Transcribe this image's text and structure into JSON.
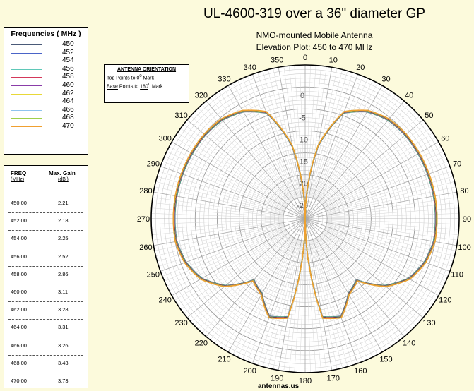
{
  "title": "UL-4600-319 over a 36\" diameter GP",
  "subtitle": "NMO-mounted Mobile Antenna",
  "subtitle2": "Elevation Plot:  450 to 470 MHz",
  "watermark": "antennas.us",
  "legend": {
    "header": "Frequencies ( MHz )",
    "items": [
      {
        "label": "450",
        "color": "#4a5a78"
      },
      {
        "label": "452",
        "color": "#4a64c8"
      },
      {
        "label": "454",
        "color": "#2fa836"
      },
      {
        "label": "456",
        "color": "#5fc8b8"
      },
      {
        "label": "458",
        "color": "#d4385a"
      },
      {
        "label": "460",
        "color": "#8a3ca8"
      },
      {
        "label": "462",
        "color": "#e8d838"
      },
      {
        "label": "464",
        "color": "#000000"
      },
      {
        "label": "466",
        "color": "#8ec4ee"
      },
      {
        "label": "468",
        "color": "#9ed04a"
      },
      {
        "label": "470",
        "color": "#f0a030"
      }
    ]
  },
  "orientation": {
    "title": "ANTENNA ORIENTATION",
    "line1_a": "Top",
    "line1_b": " Points to ",
    "line1_c": "0",
    "line1_sup": "0",
    "line1_d": " Mark",
    "line2_a": "Base",
    "line2_b": " Points to ",
    "line2_c": "180",
    "line2_sup": "0",
    "line2_d": " Mark"
  },
  "gain_table": {
    "col1": "FREQ",
    "col1_sub": "(MHz)",
    "col2": "Max. Gain",
    "col2_sub": "(dBi)",
    "rows": [
      {
        "freq": "450.00",
        "gain": "2.21"
      },
      {
        "freq": "452.00",
        "gain": "2.18"
      },
      {
        "freq": "454.00",
        "gain": "2.25"
      },
      {
        "freq": "456.00",
        "gain": "2.52"
      },
      {
        "freq": "458.00",
        "gain": "2.86"
      },
      {
        "freq": "460.00",
        "gain": "3.11"
      },
      {
        "freq": "462.00",
        "gain": "3.28"
      },
      {
        "freq": "464.00",
        "gain": "3.31"
      },
      {
        "freq": "466.00",
        "gain": "3.26"
      },
      {
        "freq": "468.00",
        "gain": "3.43"
      },
      {
        "freq": "470.00",
        "gain": "3.73"
      }
    ]
  },
  "chart_data": {
    "type": "polar",
    "angle_labels": [
      "0",
      "10",
      "20",
      "30",
      "40",
      "50",
      "60",
      "70",
      "80",
      "90",
      "100",
      "110",
      "120",
      "130",
      "140",
      "150",
      "160",
      "170",
      "180",
      "190",
      "200",
      "210",
      "220",
      "230",
      "240",
      "250",
      "260",
      "270",
      "280",
      "290",
      "300",
      "310",
      "320",
      "330",
      "340",
      "350"
    ],
    "radial_labels": [
      "0",
      "-5",
      "-10",
      "-15",
      "-20",
      "-25"
    ],
    "radial_unit": "dB",
    "rlim": [
      -30,
      5
    ],
    "pattern_angles": [
      0,
      10,
      20,
      30,
      40,
      50,
      60,
      70,
      80,
      90,
      100,
      110,
      120,
      130,
      140,
      150,
      160,
      170,
      180
    ],
    "pattern_base": [
      -30,
      -13,
      -4,
      -1.5,
      -0.3,
      0,
      0,
      0,
      0,
      0,
      0,
      -0.8,
      -2.5,
      -6,
      -11.5,
      -10,
      -6,
      -7,
      -30
    ],
    "gain_offsets": [
      0,
      0.1,
      0.2,
      0.4,
      0.6,
      0.8,
      1.0,
      1.1,
      1.3,
      1.4,
      1.5
    ]
  }
}
